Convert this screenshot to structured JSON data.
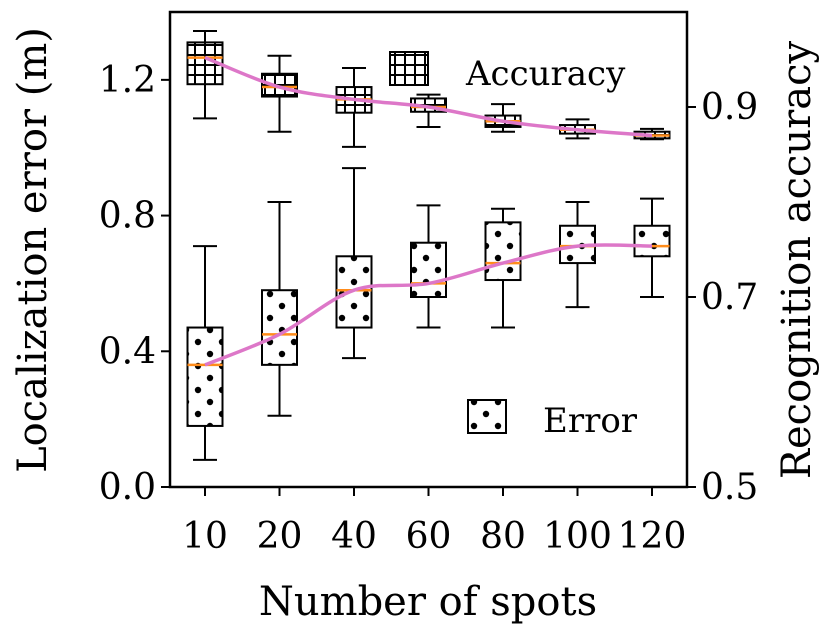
{
  "chart_data": {
    "type": "box",
    "categories": [
      "10",
      "20",
      "40",
      "60",
      "80",
      "100",
      "120"
    ],
    "xlabel": "Number of spots",
    "ylabel_left": "Localization error (m)",
    "ylabel_right": "Recognition accuracy",
    "ylim_left": [
      0,
      1.4
    ],
    "ylim_right": [
      0.5,
      1.0
    ],
    "yticks_left": [
      "0.0",
      "0.4",
      "0.8",
      "1.2"
    ],
    "yticks_right": [
      "0.5",
      "0.7",
      "0.9"
    ],
    "grid": false,
    "legend_position": "inside",
    "median_color": "#ff8c1a",
    "trend_color": "#dd77c8",
    "series": [
      {
        "name": "Accuracy",
        "axis": "right",
        "pattern": "grid",
        "boxes": [
          {
            "whislo": 0.888,
            "q1": 0.924,
            "med": 0.952,
            "q3": 0.968,
            "whishi": 0.98
          },
          {
            "whislo": 0.874,
            "q1": 0.911,
            "med": 0.921,
            "q3": 0.935,
            "whishi": 0.954
          },
          {
            "whislo": 0.858,
            "q1": 0.894,
            "med": 0.908,
            "q3": 0.921,
            "whishi": 0.941
          },
          {
            "whislo": 0.879,
            "q1": 0.895,
            "med": 0.9,
            "q3": 0.909,
            "whishi": 0.913
          },
          {
            "whislo": 0.874,
            "q1": 0.879,
            "med": 0.885,
            "q3": 0.891,
            "whishi": 0.903
          },
          {
            "whislo": 0.867,
            "q1": 0.872,
            "med": 0.876,
            "q3": 0.881,
            "whishi": 0.887
          },
          {
            "whislo": 0.866,
            "q1": 0.867,
            "med": 0.87,
            "q3": 0.874,
            "whishi": 0.877
          }
        ]
      },
      {
        "name": "Error",
        "axis": "left",
        "pattern": "dots",
        "boxes": [
          {
            "whislo": 0.08,
            "q1": 0.18,
            "med": 0.36,
            "q3": 0.47,
            "whishi": 0.71
          },
          {
            "whislo": 0.21,
            "q1": 0.36,
            "med": 0.45,
            "q3": 0.58,
            "whishi": 0.84
          },
          {
            "whislo": 0.38,
            "q1": 0.47,
            "med": 0.58,
            "q3": 0.68,
            "whishi": 0.94
          },
          {
            "whislo": 0.47,
            "q1": 0.56,
            "med": 0.6,
            "q3": 0.72,
            "whishi": 0.83
          },
          {
            "whislo": 0.47,
            "q1": 0.61,
            "med": 0.66,
            "q3": 0.78,
            "whishi": 0.82
          },
          {
            "whislo": 0.53,
            "q1": 0.66,
            "med": 0.71,
            "q3": 0.77,
            "whishi": 0.84
          },
          {
            "whislo": 0.56,
            "q1": 0.68,
            "med": 0.71,
            "q3": 0.77,
            "whishi": 0.85
          }
        ]
      }
    ]
  }
}
